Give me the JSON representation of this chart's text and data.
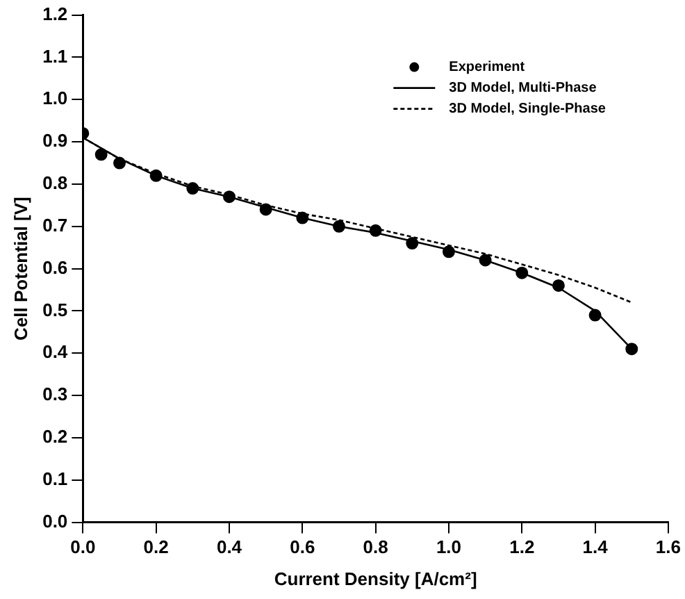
{
  "chart_data": {
    "type": "line",
    "xlabel": "Current Density [A/cm²]",
    "ylabel": "Cell Potential [V]",
    "xlim": [
      0,
      1.6
    ],
    "ylim": [
      0,
      1.2
    ],
    "xticks": [
      {
        "value": 0,
        "label": "0.0"
      },
      0.2,
      0.4,
      0.6,
      0.8,
      {
        "value": 1,
        "label": "1.0"
      },
      1.2,
      1.4,
      1.6
    ],
    "yticks": [
      {
        "value": 0,
        "label": "0.0"
      },
      0.1,
      0.2,
      0.3,
      0.4,
      0.5,
      0.6,
      0.7,
      0.8,
      0.9,
      {
        "value": 1,
        "label": "1.0"
      },
      1.1,
      1.2
    ],
    "grid": false,
    "legend": "top right",
    "series": [
      {
        "name": "Experiment",
        "type": "scatter",
        "marker": "circle",
        "color": "#000000",
        "x": [
          0,
          0.05,
          0.1,
          0.2,
          0.3,
          0.4,
          0.5,
          0.6,
          0.7,
          0.8,
          0.9,
          1.0,
          1.1,
          1.2,
          1.3,
          1.4,
          1.5
        ],
        "values": [
          0.92,
          0.87,
          0.85,
          0.82,
          0.79,
          0.77,
          0.74,
          0.72,
          0.7,
          0.69,
          0.66,
          0.64,
          0.62,
          0.59,
          0.56,
          0.49,
          0.41
        ]
      },
      {
        "name": "3D Model, Multi-Phase",
        "type": "line",
        "line_style": "solid",
        "color": "#000000",
        "x": [
          0,
          0.1,
          0.2,
          0.3,
          0.4,
          0.5,
          0.6,
          0.7,
          0.8,
          0.9,
          1.0,
          1.1,
          1.2,
          1.3,
          1.4,
          1.5
        ],
        "values": [
          0.91,
          0.86,
          0.82,
          0.79,
          0.77,
          0.745,
          0.72,
          0.7,
          0.685,
          0.665,
          0.645,
          0.62,
          0.59,
          0.555,
          0.5,
          0.41
        ]
      },
      {
        "name": "3D Model, Single-Phase",
        "type": "line",
        "line_style": "dotted",
        "color": "#000000",
        "x": [
          0,
          0.1,
          0.2,
          0.3,
          0.4,
          0.5,
          0.6,
          0.7,
          0.8,
          0.9,
          1.0,
          1.1,
          1.2,
          1.3,
          1.4,
          1.5
        ],
        "values": [
          0.91,
          0.86,
          0.825,
          0.795,
          0.775,
          0.75,
          0.73,
          0.715,
          0.695,
          0.675,
          0.655,
          0.635,
          0.61,
          0.585,
          0.555,
          0.52
        ]
      }
    ]
  }
}
